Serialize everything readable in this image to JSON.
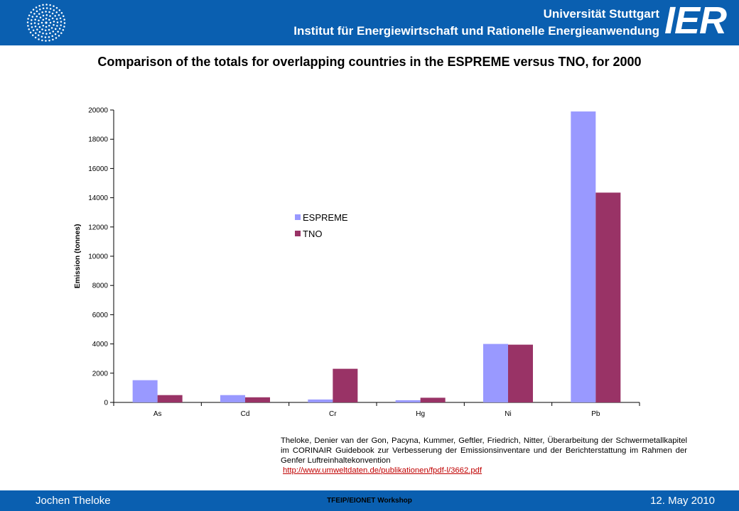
{
  "header": {
    "university": "Universität Stuttgart",
    "institute": "Institut für Energiewirtschaft und Rationelle Energieanwendung",
    "institute_abbr": "IER"
  },
  "slide": {
    "title": "Comparison of the totals for overlapping countries in the ESPREME versus TNO, for 2000"
  },
  "chart_data": {
    "type": "bar",
    "title": "",
    "xlabel": "",
    "ylabel": "Emission (tonnes)",
    "categories": [
      "As",
      "Cd",
      "Cr",
      "Hg",
      "Ni",
      "Pb"
    ],
    "series": [
      {
        "name": "ESPREME",
        "color": "#9999ff",
        "values": [
          1520,
          500,
          200,
          150,
          4000,
          19900
        ]
      },
      {
        "name": "TNO",
        "color": "#993366",
        "values": [
          500,
          350,
          2300,
          320,
          3950,
          14350
        ]
      }
    ],
    "ylim": [
      0,
      20000
    ],
    "yticks": [
      0,
      2000,
      4000,
      6000,
      8000,
      10000,
      12000,
      14000,
      16000,
      18000,
      20000
    ],
    "grid": false,
    "legend_position": "center-left"
  },
  "citation": {
    "text": "Theloke, Denier van der Gon, Pacyna, Kummer, Geftler, Friedrich, Nitter, Überarbeitung der Schwermetallkapitel im CORINAIR Guidebook zur Verbesserung der Emissionsinventare und der Berichterstattung im Rahmen der Genfer Luftreinhaltekonvention",
    "link": "http://www.umweltdaten.de/publikationen/fpdf-l/3662.pdf"
  },
  "footer": {
    "author": "Jochen Theloke",
    "event": "TFEIP/EIONET Workshop",
    "date": "12. May 2010"
  }
}
